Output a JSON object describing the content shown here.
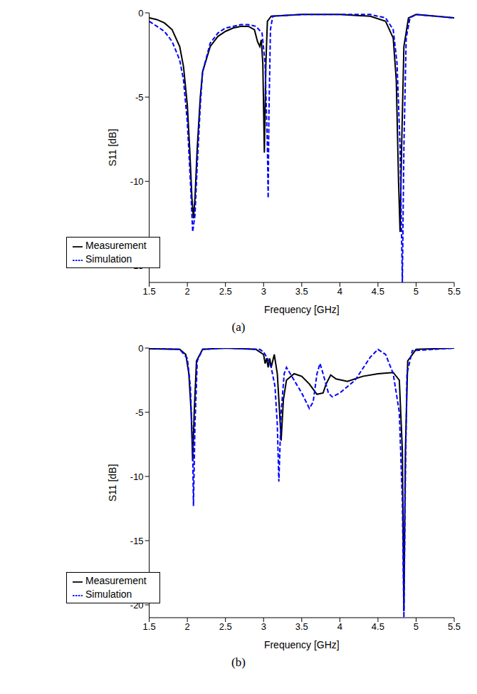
{
  "chart_data": [
    {
      "type": "line",
      "label": "(a)",
      "x_label": "Frequency [GHz]",
      "y_label": "S11 [dB]",
      "xlim": [
        1.5,
        5.5
      ],
      "xticks": [
        1.5,
        2,
        2.5,
        3,
        3.5,
        4,
        4.5,
        5,
        5.5
      ],
      "ylim": [
        -16,
        0
      ],
      "yticks": [
        -15,
        -10,
        -5,
        0
      ],
      "grid": false,
      "legend": "lower left",
      "series": [
        {
          "name": "Measurement",
          "color": "#000000",
          "line_style": "solid",
          "x": [
            1.5,
            1.6,
            1.7,
            1.8,
            1.9,
            1.95,
            2.0,
            2.03,
            2.06,
            2.08,
            2.1,
            2.13,
            2.17,
            2.2,
            2.3,
            2.4,
            2.5,
            2.6,
            2.7,
            2.8,
            2.88,
            2.92,
            2.95,
            2.97,
            2.99,
            3.01,
            3.03,
            3.05,
            3.1,
            3.5,
            4.0,
            4.4,
            4.6,
            4.7,
            4.74,
            4.77,
            4.79,
            4.81,
            4.84,
            4.9,
            5.0,
            5.5
          ],
          "values": [
            -0.3,
            -0.4,
            -0.6,
            -1.0,
            -2.0,
            -3.2,
            -5.5,
            -8,
            -11,
            -12.2,
            -11,
            -8,
            -5,
            -3.5,
            -2.0,
            -1.4,
            -1.1,
            -0.9,
            -0.8,
            -0.8,
            -1.0,
            -1.7,
            -2.0,
            -1.6,
            -3,
            -8.3,
            -3,
            -0.5,
            -0.2,
            -0.1,
            -0.1,
            -0.2,
            -0.5,
            -1.5,
            -4,
            -10,
            -13,
            -8,
            -2,
            -0.3,
            -0.1,
            -0.3
          ]
        },
        {
          "name": "Simulation",
          "color": "#0000ff",
          "line_style": "dashed",
          "x": [
            1.5,
            1.6,
            1.7,
            1.8,
            1.9,
            1.95,
            2.0,
            2.04,
            2.07,
            2.1,
            2.13,
            2.17,
            2.2,
            2.3,
            2.4,
            2.5,
            2.6,
            2.7,
            2.8,
            2.9,
            2.98,
            3.02,
            3.05,
            3.06,
            3.07,
            3.09,
            3.12,
            3.5,
            4.0,
            4.4,
            4.6,
            4.7,
            4.75,
            4.79,
            4.82,
            4.84,
            4.87,
            4.92,
            5.0,
            5.5
          ],
          "values": [
            -0.5,
            -0.8,
            -1.1,
            -1.7,
            -2.8,
            -4,
            -6.5,
            -10,
            -13,
            -12,
            -9,
            -5.5,
            -3.5,
            -1.8,
            -1.2,
            -0.9,
            -0.8,
            -0.7,
            -0.7,
            -0.8,
            -1.2,
            -3,
            -8,
            -11,
            -6,
            -1,
            -0.2,
            -0.1,
            -0.1,
            -0.1,
            -0.3,
            -1,
            -3,
            -8,
            -16,
            -8,
            -1.5,
            -0.3,
            -0.1,
            -0.3
          ]
        }
      ]
    },
    {
      "type": "line",
      "label": "(b)",
      "x_label": "Frequency [GHz]",
      "y_label": "S11 [dB]",
      "xlim": [
        1.5,
        5.5
      ],
      "xticks": [
        1.5,
        2,
        2.5,
        3,
        3.5,
        4,
        4.5,
        5,
        5.5
      ],
      "ylim": [
        -21,
        0
      ],
      "yticks": [
        -20,
        -15,
        -10,
        -5,
        0
      ],
      "grid": false,
      "legend": "lower left",
      "series": [
        {
          "name": "Measurement",
          "color": "#000000",
          "line_style": "solid",
          "x": [
            1.5,
            1.9,
            1.98,
            2.02,
            2.05,
            2.07,
            2.09,
            2.12,
            2.2,
            2.5,
            2.9,
            3.0,
            3.02,
            3.04,
            3.06,
            3.08,
            3.1,
            3.14,
            3.18,
            3.21,
            3.23,
            3.26,
            3.3,
            3.4,
            3.5,
            3.6,
            3.7,
            3.78,
            3.82,
            3.88,
            3.95,
            4.1,
            4.3,
            4.5,
            4.7,
            4.78,
            4.82,
            4.84,
            4.86,
            4.89,
            5.0,
            5.5
          ],
          "values": [
            -0.05,
            -0.1,
            -0.5,
            -2,
            -5,
            -8.8,
            -5,
            -1,
            -0.1,
            0,
            -0.1,
            -0.5,
            -1.2,
            -0.8,
            -1.5,
            -0.8,
            -1.5,
            -0.5,
            -2,
            -5,
            -7.2,
            -4,
            -2.5,
            -2.0,
            -2.2,
            -2.8,
            -3.6,
            -3.5,
            -2.8,
            -2.1,
            -2.4,
            -2.6,
            -2.2,
            -2.0,
            -1.9,
            -2.5,
            -8,
            -20.5,
            -8,
            -1,
            -0.1,
            0
          ]
        },
        {
          "name": "Simulation",
          "color": "#0000ff",
          "line_style": "dashed",
          "x": [
            1.5,
            1.9,
            2.0,
            2.04,
            2.07,
            2.08,
            2.1,
            2.13,
            2.2,
            2.5,
            2.95,
            3.0,
            3.05,
            3.1,
            3.15,
            3.18,
            3.2,
            3.23,
            3.27,
            3.3,
            3.4,
            3.5,
            3.6,
            3.65,
            3.7,
            3.74,
            3.78,
            3.85,
            3.9,
            4.0,
            4.2,
            4.4,
            4.5,
            4.6,
            4.7,
            4.78,
            4.82,
            4.84,
            4.86,
            4.88,
            4.95,
            5.5
          ],
          "values": [
            0,
            -0.1,
            -0.8,
            -3,
            -8,
            -12.3,
            -6,
            -1,
            -0.1,
            0,
            -0.1,
            -0.3,
            -0.8,
            -1.5,
            -3,
            -6,
            -10.4,
            -5,
            -2,
            -1.5,
            -2.5,
            -3.5,
            -4.7,
            -4.2,
            -2,
            -1.2,
            -2,
            -3.5,
            -3.8,
            -3.5,
            -2.5,
            -0.7,
            -0.1,
            -0.5,
            -2,
            -5,
            -12,
            -21,
            -10,
            -2,
            -0.2,
            0
          ]
        }
      ]
    }
  ]
}
